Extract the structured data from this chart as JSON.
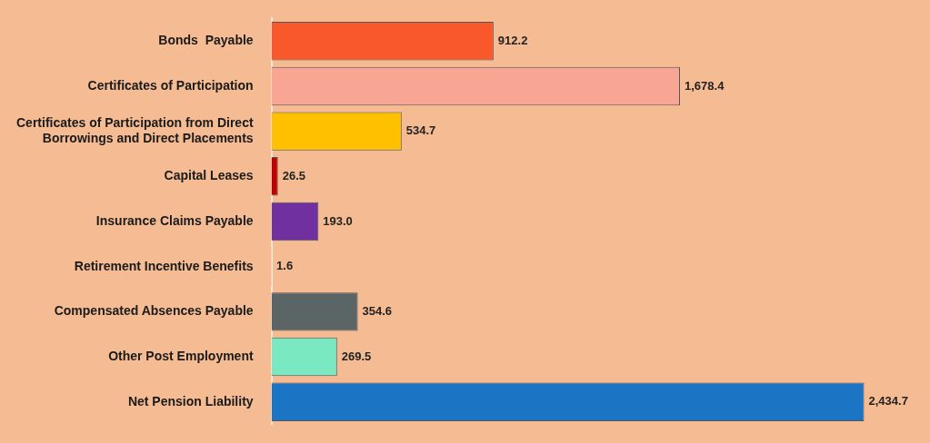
{
  "chart_data": {
    "type": "bar",
    "orientation": "horizontal",
    "legend": false,
    "categories": [
      "Bonds  Payable",
      "Certificates of Participation",
      "Certificates of Participation from Direct Borrowings and Direct Placements",
      "Capital Leases",
      "Insurance Claims Payable",
      "Retirement Incentive Benefits",
      "Compensated Absences Payable",
      "Other Post Employment",
      "Net Pension Liability"
    ],
    "values": [
      912.2,
      1678.4,
      534.7,
      26.5,
      193.0,
      1.6,
      354.6,
      269.5,
      2434.7
    ],
    "value_labels": [
      "912.2",
      "1,678.4",
      "534.7",
      "26.5",
      "193.0",
      "1.6",
      "354.6",
      "269.5",
      "2,434.7"
    ],
    "colors": [
      "#f9592a",
      "#f9a593",
      "#ffc000",
      "#c00000",
      "#7030a0",
      "#2ca02c",
      "#5b6566",
      "#7ae8c0",
      "#1c74c4"
    ]
  }
}
